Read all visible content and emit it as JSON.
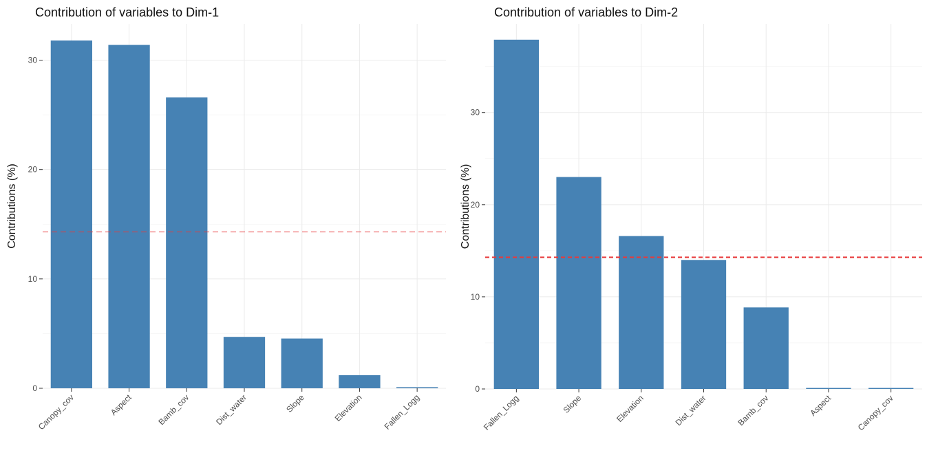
{
  "chart_data": [
    {
      "type": "bar",
      "title": "Contribution of variables to Dim-1",
      "ylabel": "Contributions (%)",
      "xlabel": "",
      "categories": [
        "Canopy_cov",
        "Aspect",
        "Bamb_cov",
        "Dist_water",
        "Slope",
        "Elevation",
        "Fallen_Logg"
      ],
      "values": [
        31.8,
        31.4,
        26.6,
        4.7,
        4.55,
        1.2,
        0.1
      ],
      "reference_line": 14.29,
      "ylim": [
        0,
        33.3
      ],
      "yticks": [
        0,
        10,
        20,
        30
      ],
      "grid": true,
      "bar_color": "#4682B4",
      "reference_color": "#E8393A"
    },
    {
      "type": "bar",
      "title": "Contribution of variables to Dim-2",
      "ylabel": "Contributions (%)",
      "xlabel": "",
      "categories": [
        "Fallen_Logg",
        "Slope",
        "Elevation",
        "Dist_water",
        "Bamb_cov",
        "Aspect",
        "Canopy_cov"
      ],
      "values": [
        37.9,
        23.0,
        16.6,
        14.0,
        8.85,
        0.1,
        0.1
      ],
      "reference_line": 14.29,
      "ylim": [
        0,
        39.6
      ],
      "yticks": [
        0,
        10,
        20,
        30
      ],
      "grid": true,
      "bar_color": "#4682B4",
      "reference_color": "#E8393A"
    }
  ]
}
